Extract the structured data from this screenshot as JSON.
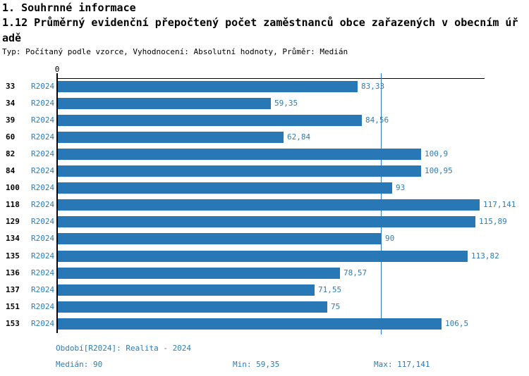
{
  "header": {
    "section_title": "1. Souhrnné informace",
    "chart_title": "1.12 Průměrný evidenční přepočtený počet zaměstnanců obce zařazených v obecním úřadě",
    "meta": "Typ: Počítaný podle vzorce, Vyhodnocení: Absolutní hodnoty, Průměr: Medián"
  },
  "chart_data": {
    "type": "bar",
    "orientation": "horizontal",
    "title": "1.12 Průměrný evidenční přepočtený počet zaměstnanců obce zařazených v obecním úřadě",
    "series_label": "R2024",
    "categories": [
      "33",
      "34",
      "39",
      "60",
      "82",
      "84",
      "100",
      "118",
      "129",
      "134",
      "135",
      "136",
      "137",
      "151",
      "153"
    ],
    "values": [
      83.33,
      59.35,
      84.56,
      62.84,
      100.9,
      100.95,
      93,
      117.141,
      115.89,
      90,
      113.82,
      78.57,
      71.55,
      75,
      106.5
    ],
    "value_labels": [
      "83,33",
      "59,35",
      "84,56",
      "62,84",
      "100,9",
      "100,95",
      "93",
      "117,141",
      "115,89",
      "90",
      "113,82",
      "78,57",
      "71,55",
      "75",
      "106,5"
    ],
    "xlim": [
      0,
      118.3
    ],
    "x_tick_labels": [
      "0"
    ],
    "median_line_value": 90,
    "grid": false,
    "legend_position": "bottom"
  },
  "footer": {
    "period_label": "Období[R2024]: Realita - 2024",
    "median_label": "Medián: 90",
    "min_label": "Min: 59,35",
    "max_label": "Max: 117,141"
  },
  "colors": {
    "bar": "#2778b4",
    "blue_text": "#2e7cb5",
    "median_line": "#2e7cb5",
    "axis": "#000000"
  }
}
